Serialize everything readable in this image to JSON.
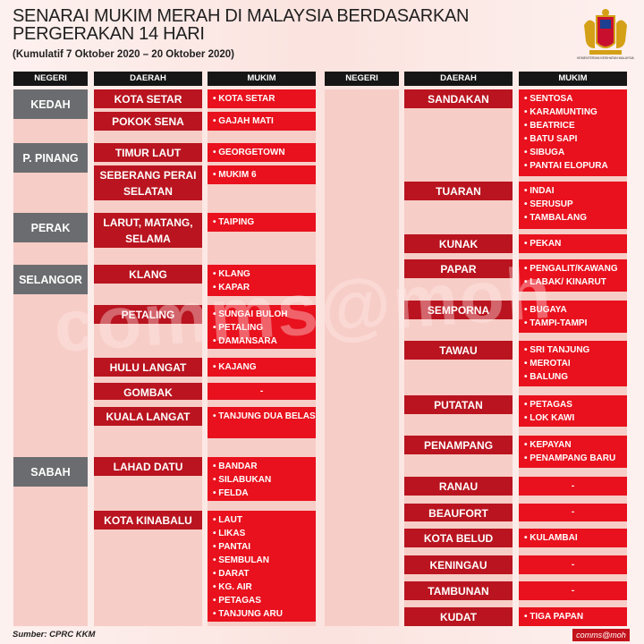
{
  "title": "SENARAI MUKIM MERAH DI MALAYSIA BERDASARKAN PERGERAKAN 14 HARI",
  "subtitle": "(Kumulatif 7 Oktober 2020 – 20 Oktober 2020)",
  "logo_text": "KEMENTERIAN KESIHATAN MALAYSIA",
  "headers": {
    "negeri": "NEGERI",
    "daerah": "DAERAH",
    "mukim": "MUKIM"
  },
  "colors": {
    "negeri": "#6b6c6f",
    "daerah": "#b9141f",
    "mukim": "#e8111d",
    "header": "#161616"
  },
  "left": [
    {
      "negeri": "KEDAH",
      "rows": [
        {
          "daerah": "KOTA SETAR",
          "mukim": [
            "KOTA SETAR"
          ]
        },
        {
          "daerah": "POKOK SENA",
          "mukim": [
            "GAJAH MATI"
          ]
        }
      ]
    },
    {
      "negeri": "P. PINANG",
      "rows": [
        {
          "daerah": "TIMUR LAUT",
          "mukim": [
            "GEORGETOWN"
          ]
        },
        {
          "daerah": "SEBERANG PERAI SELATAN",
          "mukim": [
            "MUKIM 6"
          ]
        }
      ]
    },
    {
      "negeri": "PERAK",
      "rows": [
        {
          "daerah": "LARUT, MATANG, SELAMA",
          "mukim": [
            "TAIPING"
          ]
        }
      ]
    },
    {
      "negeri": "SELANGOR",
      "rows": [
        {
          "daerah": "KLANG",
          "mukim": [
            "KLANG",
            "KAPAR"
          ]
        },
        {
          "daerah": "PETALING",
          "mukim": [
            "SUNGAI BULOH",
            "PETALING",
            "DAMANSARA"
          ]
        },
        {
          "daerah": "HULU LANGAT",
          "mukim": [
            "KAJANG"
          ]
        },
        {
          "daerah": "GOMBAK",
          "mukim": [
            "-"
          ]
        },
        {
          "daerah": "KUALA LANGAT",
          "mukim": [
            "TANJUNG DUA BELAS"
          ]
        }
      ]
    },
    {
      "negeri": "SABAH",
      "rows": [
        {
          "daerah": "LAHAD DATU",
          "mukim": [
            "BANDAR",
            "SILABUKAN",
            "FELDA"
          ]
        },
        {
          "daerah": "KOTA KINABALU",
          "mukim": [
            "LAUT",
            "LIKAS",
            "PANTAI",
            "SEMBULAN",
            "DARAT",
            "KG. AIR",
            "PETAGAS",
            "TANJUNG ARU"
          ]
        }
      ]
    }
  ],
  "right": [
    {
      "negeri": "",
      "rows": [
        {
          "daerah": "SANDAKAN",
          "mukim": [
            "SENTOSA",
            "KARAMUNTING",
            "BEATRICE",
            "BATU SAPI",
            "SIBUGA",
            "PANTAI ELOPURA"
          ]
        },
        {
          "daerah": "TUARAN",
          "mukim": [
            "INDAI",
            "SERUSUP",
            "TAMBALANG"
          ]
        },
        {
          "daerah": "KUNAK",
          "mukim": [
            "PEKAN"
          ]
        },
        {
          "daerah": "PAPAR",
          "mukim": [
            "PENGALIT/KAWANG",
            "LABAK/ KINARUT"
          ]
        },
        {
          "daerah": "SEMPORNA",
          "mukim": [
            "BUGAYA",
            "TAMPI-TAMPI"
          ]
        },
        {
          "daerah": "TAWAU",
          "mukim": [
            "SRI TANJUNG",
            "MEROTAI",
            "BALUNG"
          ]
        },
        {
          "daerah": "PUTATAN",
          "mukim": [
            "PETAGAS",
            "LOK KAWI"
          ]
        },
        {
          "daerah": "PENAMPANG",
          "mukim": [
            "KEPAYAN",
            "PENAMPANG BARU"
          ]
        },
        {
          "daerah": "RANAU",
          "mukim": [
            "-"
          ]
        },
        {
          "daerah": "BEAUFORT",
          "mukim": [
            "-"
          ]
        },
        {
          "daerah": "KOTA BELUD",
          "mukim": [
            "KULAMBAI"
          ]
        },
        {
          "daerah": "KENINGAU",
          "mukim": [
            "-"
          ]
        },
        {
          "daerah": "TAMBUNAN",
          "mukim": [
            "-"
          ]
        },
        {
          "daerah": "KUDAT",
          "mukim": [
            "TIGA PAPAN"
          ]
        }
      ]
    }
  ],
  "watermark": "comms@moh",
  "source": "Sumber: CPRC KKM",
  "badge": "comms@moh"
}
